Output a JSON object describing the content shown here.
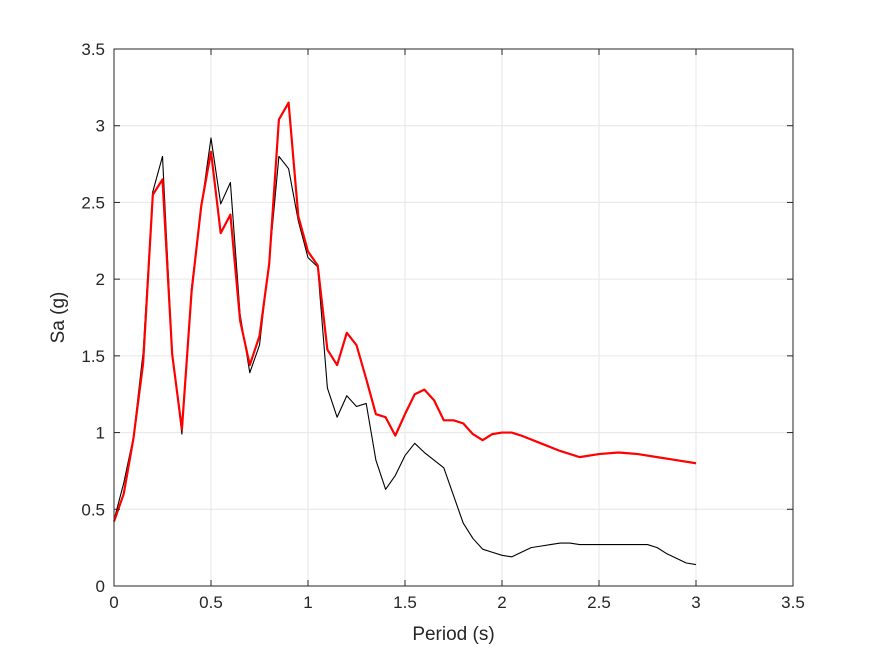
{
  "chart_data": {
    "type": "line",
    "title": "",
    "xlabel": "Period (s)",
    "ylabel": "Sa (g)",
    "xlim": [
      0,
      3.5
    ],
    "ylim": [
      0,
      3.5
    ],
    "xticks": [
      "0",
      "0.5",
      "1",
      "1.5",
      "2",
      "2.5",
      "3",
      "3.5"
    ],
    "yticks": [
      "0",
      "0.5",
      "1",
      "1.5",
      "2",
      "2.5",
      "3",
      "3.5"
    ],
    "grid": true,
    "legend": "none",
    "series": [
      {
        "color": "#000000",
        "x": [
          0,
          0.05,
          0.1,
          0.15,
          0.2,
          0.25,
          0.3,
          0.35,
          0.4,
          0.45,
          0.5,
          0.55,
          0.6,
          0.65,
          0.7,
          0.75,
          0.8,
          0.85,
          0.9,
          0.95,
          1.0,
          1.05,
          1.1,
          1.15,
          1.2,
          1.25,
          1.3,
          1.35,
          1.4,
          1.45,
          1.5,
          1.55,
          1.6,
          1.65,
          1.7,
          1.75,
          1.8,
          1.85,
          1.9,
          1.95,
          2.0,
          2.05,
          2.1,
          2.15,
          2.2,
          2.25,
          2.3,
          2.35,
          2.4,
          2.45,
          2.5,
          2.55,
          2.6,
          2.65,
          2.7,
          2.75,
          2.8,
          2.85,
          2.9,
          2.95,
          3.0
        ],
        "y": [
          0.43,
          0.67,
          0.97,
          1.52,
          2.57,
          2.8,
          1.52,
          0.99,
          1.95,
          2.47,
          2.92,
          2.49,
          2.63,
          1.77,
          1.39,
          1.57,
          2.12,
          2.8,
          2.72,
          2.38,
          2.14,
          2.08,
          1.29,
          1.1,
          1.24,
          1.17,
          1.19,
          0.82,
          0.63,
          0.72,
          0.85,
          0.93,
          0.87,
          0.82,
          0.77,
          0.59,
          0.41,
          0.31,
          0.24,
          0.22,
          0.2,
          0.19,
          0.22,
          0.25,
          0.26,
          0.27,
          0.28,
          0.28,
          0.27,
          0.27,
          0.27,
          0.27,
          0.27,
          0.27,
          0.27,
          0.27,
          0.25,
          0.21,
          0.18,
          0.15,
          0.14
        ]
      },
      {
        "color": "#ff0000",
        "x": [
          0,
          0.05,
          0.1,
          0.15,
          0.2,
          0.25,
          0.3,
          0.35,
          0.4,
          0.45,
          0.5,
          0.55,
          0.6,
          0.65,
          0.7,
          0.75,
          0.8,
          0.85,
          0.9,
          0.95,
          1.0,
          1.05,
          1.1,
          1.15,
          1.2,
          1.25,
          1.3,
          1.35,
          1.4,
          1.45,
          1.5,
          1.55,
          1.6,
          1.65,
          1.7,
          1.75,
          1.8,
          1.85,
          1.9,
          1.95,
          2.0,
          2.05,
          2.1,
          2.2,
          2.3,
          2.4,
          2.5,
          2.6,
          2.7,
          2.8,
          2.9,
          3.0
        ],
        "y": [
          0.42,
          0.6,
          0.96,
          1.45,
          2.55,
          2.65,
          1.51,
          1.02,
          1.92,
          2.48,
          2.83,
          2.3,
          2.42,
          1.73,
          1.44,
          1.63,
          2.1,
          3.04,
          3.15,
          2.41,
          2.18,
          2.09,
          1.54,
          1.44,
          1.65,
          1.57,
          1.35,
          1.12,
          1.1,
          0.98,
          1.12,
          1.25,
          1.28,
          1.21,
          1.08,
          1.08,
          1.06,
          0.99,
          0.95,
          0.99,
          1.0,
          1.0,
          0.98,
          0.93,
          0.88,
          0.84,
          0.86,
          0.87,
          0.86,
          0.84,
          0.82,
          0.8
        ]
      }
    ]
  }
}
